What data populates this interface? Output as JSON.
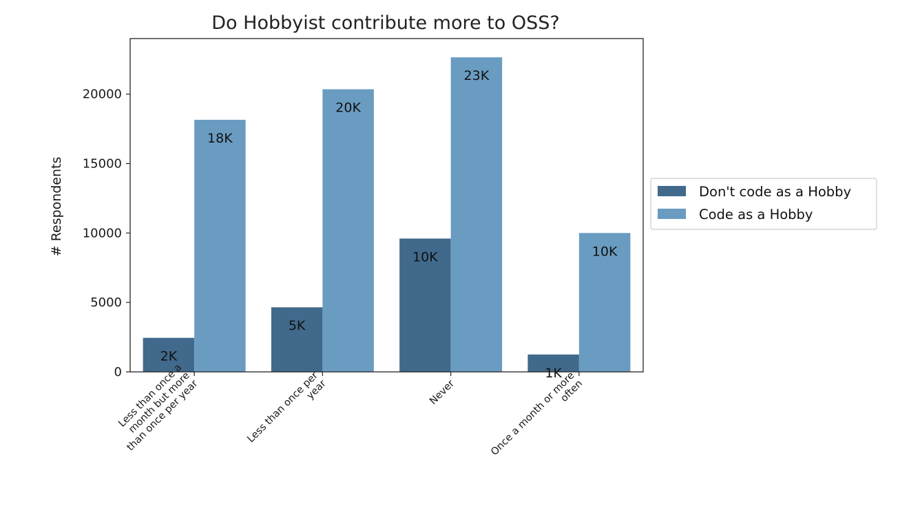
{
  "chart_data": {
    "type": "bar",
    "title": "Do Hobbyist contribute more to OSS?",
    "xlabel": "",
    "ylabel": "# Respondents",
    "ylim": [
      0,
      24000
    ],
    "yticks": [
      0,
      5000,
      10000,
      15000,
      20000
    ],
    "grid": false,
    "legend_position": "right",
    "categories": [
      [
        "Less than once a",
        "month  but more",
        "than once per year"
      ],
      [
        "Less than once per",
        "year"
      ],
      [
        "Never"
      ],
      [
        "Once a month or more",
        "often"
      ]
    ],
    "series": [
      {
        "name": "Don't code as a Hobby",
        "color": "#41698c",
        "values": [
          2450,
          4650,
          9600,
          1250
        ],
        "labels": [
          "2K",
          "5K",
          "10K",
          "1K"
        ]
      },
      {
        "name": "Code as a Hobby",
        "color": "#6a9cc2",
        "values": [
          18150,
          20350,
          22650,
          10000
        ],
        "labels": [
          "18K",
          "20K",
          "23K",
          "10K"
        ]
      }
    ]
  }
}
